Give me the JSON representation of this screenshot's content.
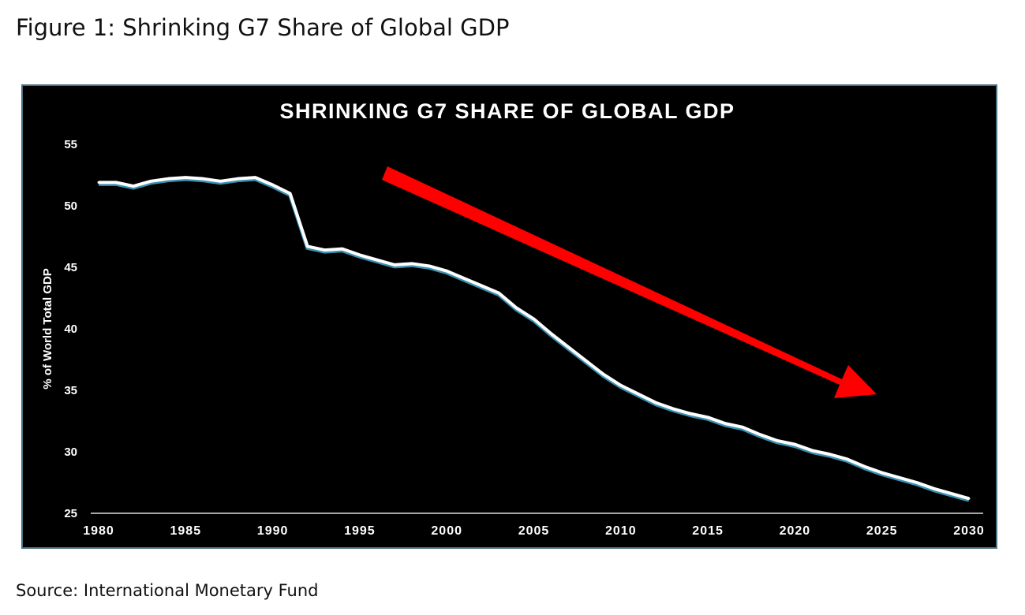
{
  "figure_title": "Figure 1: Shrinking G7 Share of Global GDP",
  "source": "Source: International Monetary Fund",
  "chart_data": {
    "type": "line",
    "title": "SHRINKING G7 SHARE OF GLOBAL GDP",
    "xlabel": "",
    "ylabel": "% of World Total GDP",
    "xlim": [
      1980,
      2030
    ],
    "ylim": [
      25,
      55
    ],
    "xticks": [
      "1980",
      "1985",
      "1990",
      "1995",
      "2000",
      "2005",
      "2010",
      "2015",
      "2020",
      "2025",
      "2030"
    ],
    "yticks": [
      "25",
      "30",
      "35",
      "40",
      "45",
      "50",
      "55"
    ],
    "grid": false,
    "drop_lines": true,
    "annotation": "red downward trend arrow",
    "colors": {
      "background": "#000000",
      "line": "#ffffff",
      "arrow": "#ff0000",
      "frame": "#4a6f80"
    },
    "x": [
      1980,
      1981,
      1982,
      1983,
      1984,
      1985,
      1986,
      1987,
      1988,
      1989,
      1990,
      1991,
      1992,
      1993,
      1994,
      1995,
      1996,
      1997,
      1998,
      1999,
      2000,
      2001,
      2002,
      2003,
      2004,
      2005,
      2006,
      2007,
      2008,
      2009,
      2010,
      2011,
      2012,
      2013,
      2014,
      2015,
      2016,
      2017,
      2018,
      2019,
      2020,
      2021,
      2022,
      2023,
      2024,
      2025,
      2026,
      2027,
      2028,
      2029,
      2030
    ],
    "y": [
      51.9,
      51.9,
      51.6,
      52.0,
      52.2,
      52.3,
      52.2,
      52.0,
      52.2,
      52.3,
      51.7,
      51.0,
      46.7,
      46.4,
      46.5,
      46.0,
      45.6,
      45.2,
      45.3,
      45.1,
      44.7,
      44.1,
      43.5,
      42.9,
      41.7,
      40.8,
      39.6,
      38.5,
      37.4,
      36.3,
      35.4,
      34.7,
      34.0,
      33.5,
      33.1,
      32.8,
      32.3,
      32.0,
      31.4,
      30.9,
      30.6,
      30.1,
      29.8,
      29.4,
      28.8,
      28.3,
      27.9,
      27.5,
      27.0,
      26.6,
      26.2
    ]
  }
}
